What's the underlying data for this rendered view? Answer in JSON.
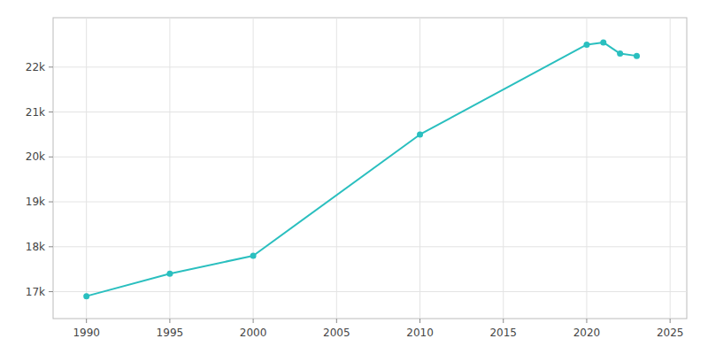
{
  "chart_data": {
    "type": "line",
    "x": [
      1990,
      1995,
      2000,
      2010,
      2020,
      2021,
      2022,
      2023
    ],
    "values": [
      16900,
      17400,
      17800,
      20500,
      22500,
      22550,
      22300,
      22250
    ],
    "color": "#2abfbf",
    "marker": "circle",
    "xlim": [
      1988,
      2026
    ],
    "ylim": [
      16400,
      23100
    ],
    "xticks": [
      1990,
      1995,
      2000,
      2005,
      2010,
      2015,
      2020,
      2025
    ],
    "yticks": [
      {
        "value": 17000,
        "label": "17k"
      },
      {
        "value": 18000,
        "label": "18k"
      },
      {
        "value": 19000,
        "label": "19k"
      },
      {
        "value": 20000,
        "label": "20k"
      },
      {
        "value": 21000,
        "label": "21k"
      },
      {
        "value": 22000,
        "label": "22k"
      }
    ],
    "grid": true
  }
}
